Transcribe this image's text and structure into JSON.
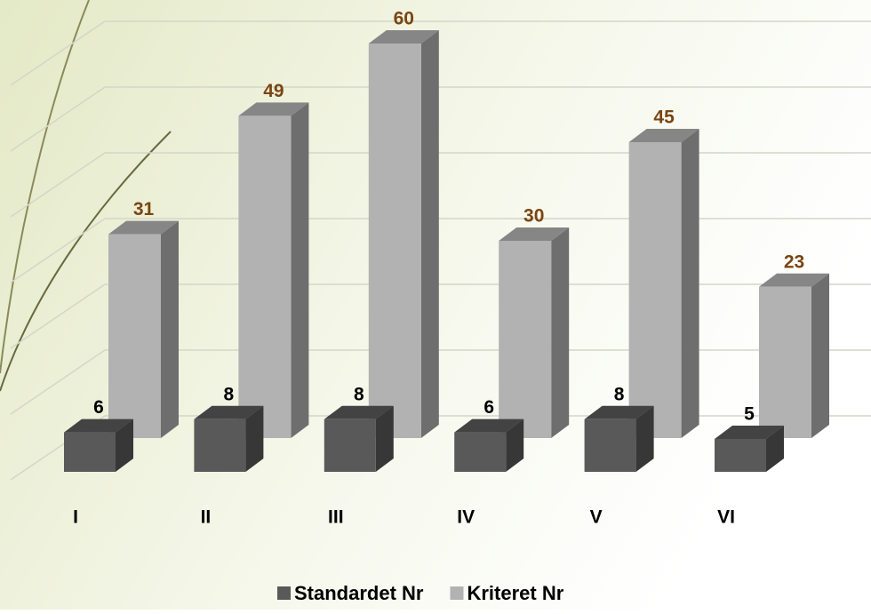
{
  "chart_data": {
    "type": "bar3d",
    "categories": [
      "I",
      "II",
      "III",
      "IV",
      "V",
      "VI"
    ],
    "series": [
      {
        "name": "Standardet Nr",
        "color": "#595959",
        "label_color": "#000000",
        "values": [
          6,
          8,
          8,
          6,
          8,
          5
        ]
      },
      {
        "name": "Kriteret Nr",
        "color": "#b2b2b2",
        "label_color": "#7a4512",
        "values": [
          31,
          49,
          60,
          30,
          45,
          23
        ]
      }
    ],
    "ylim": [
      0,
      60
    ],
    "yticks": [
      0,
      10,
      20,
      30,
      40,
      50,
      60
    ],
    "grid": true,
    "legend": "bottom"
  }
}
